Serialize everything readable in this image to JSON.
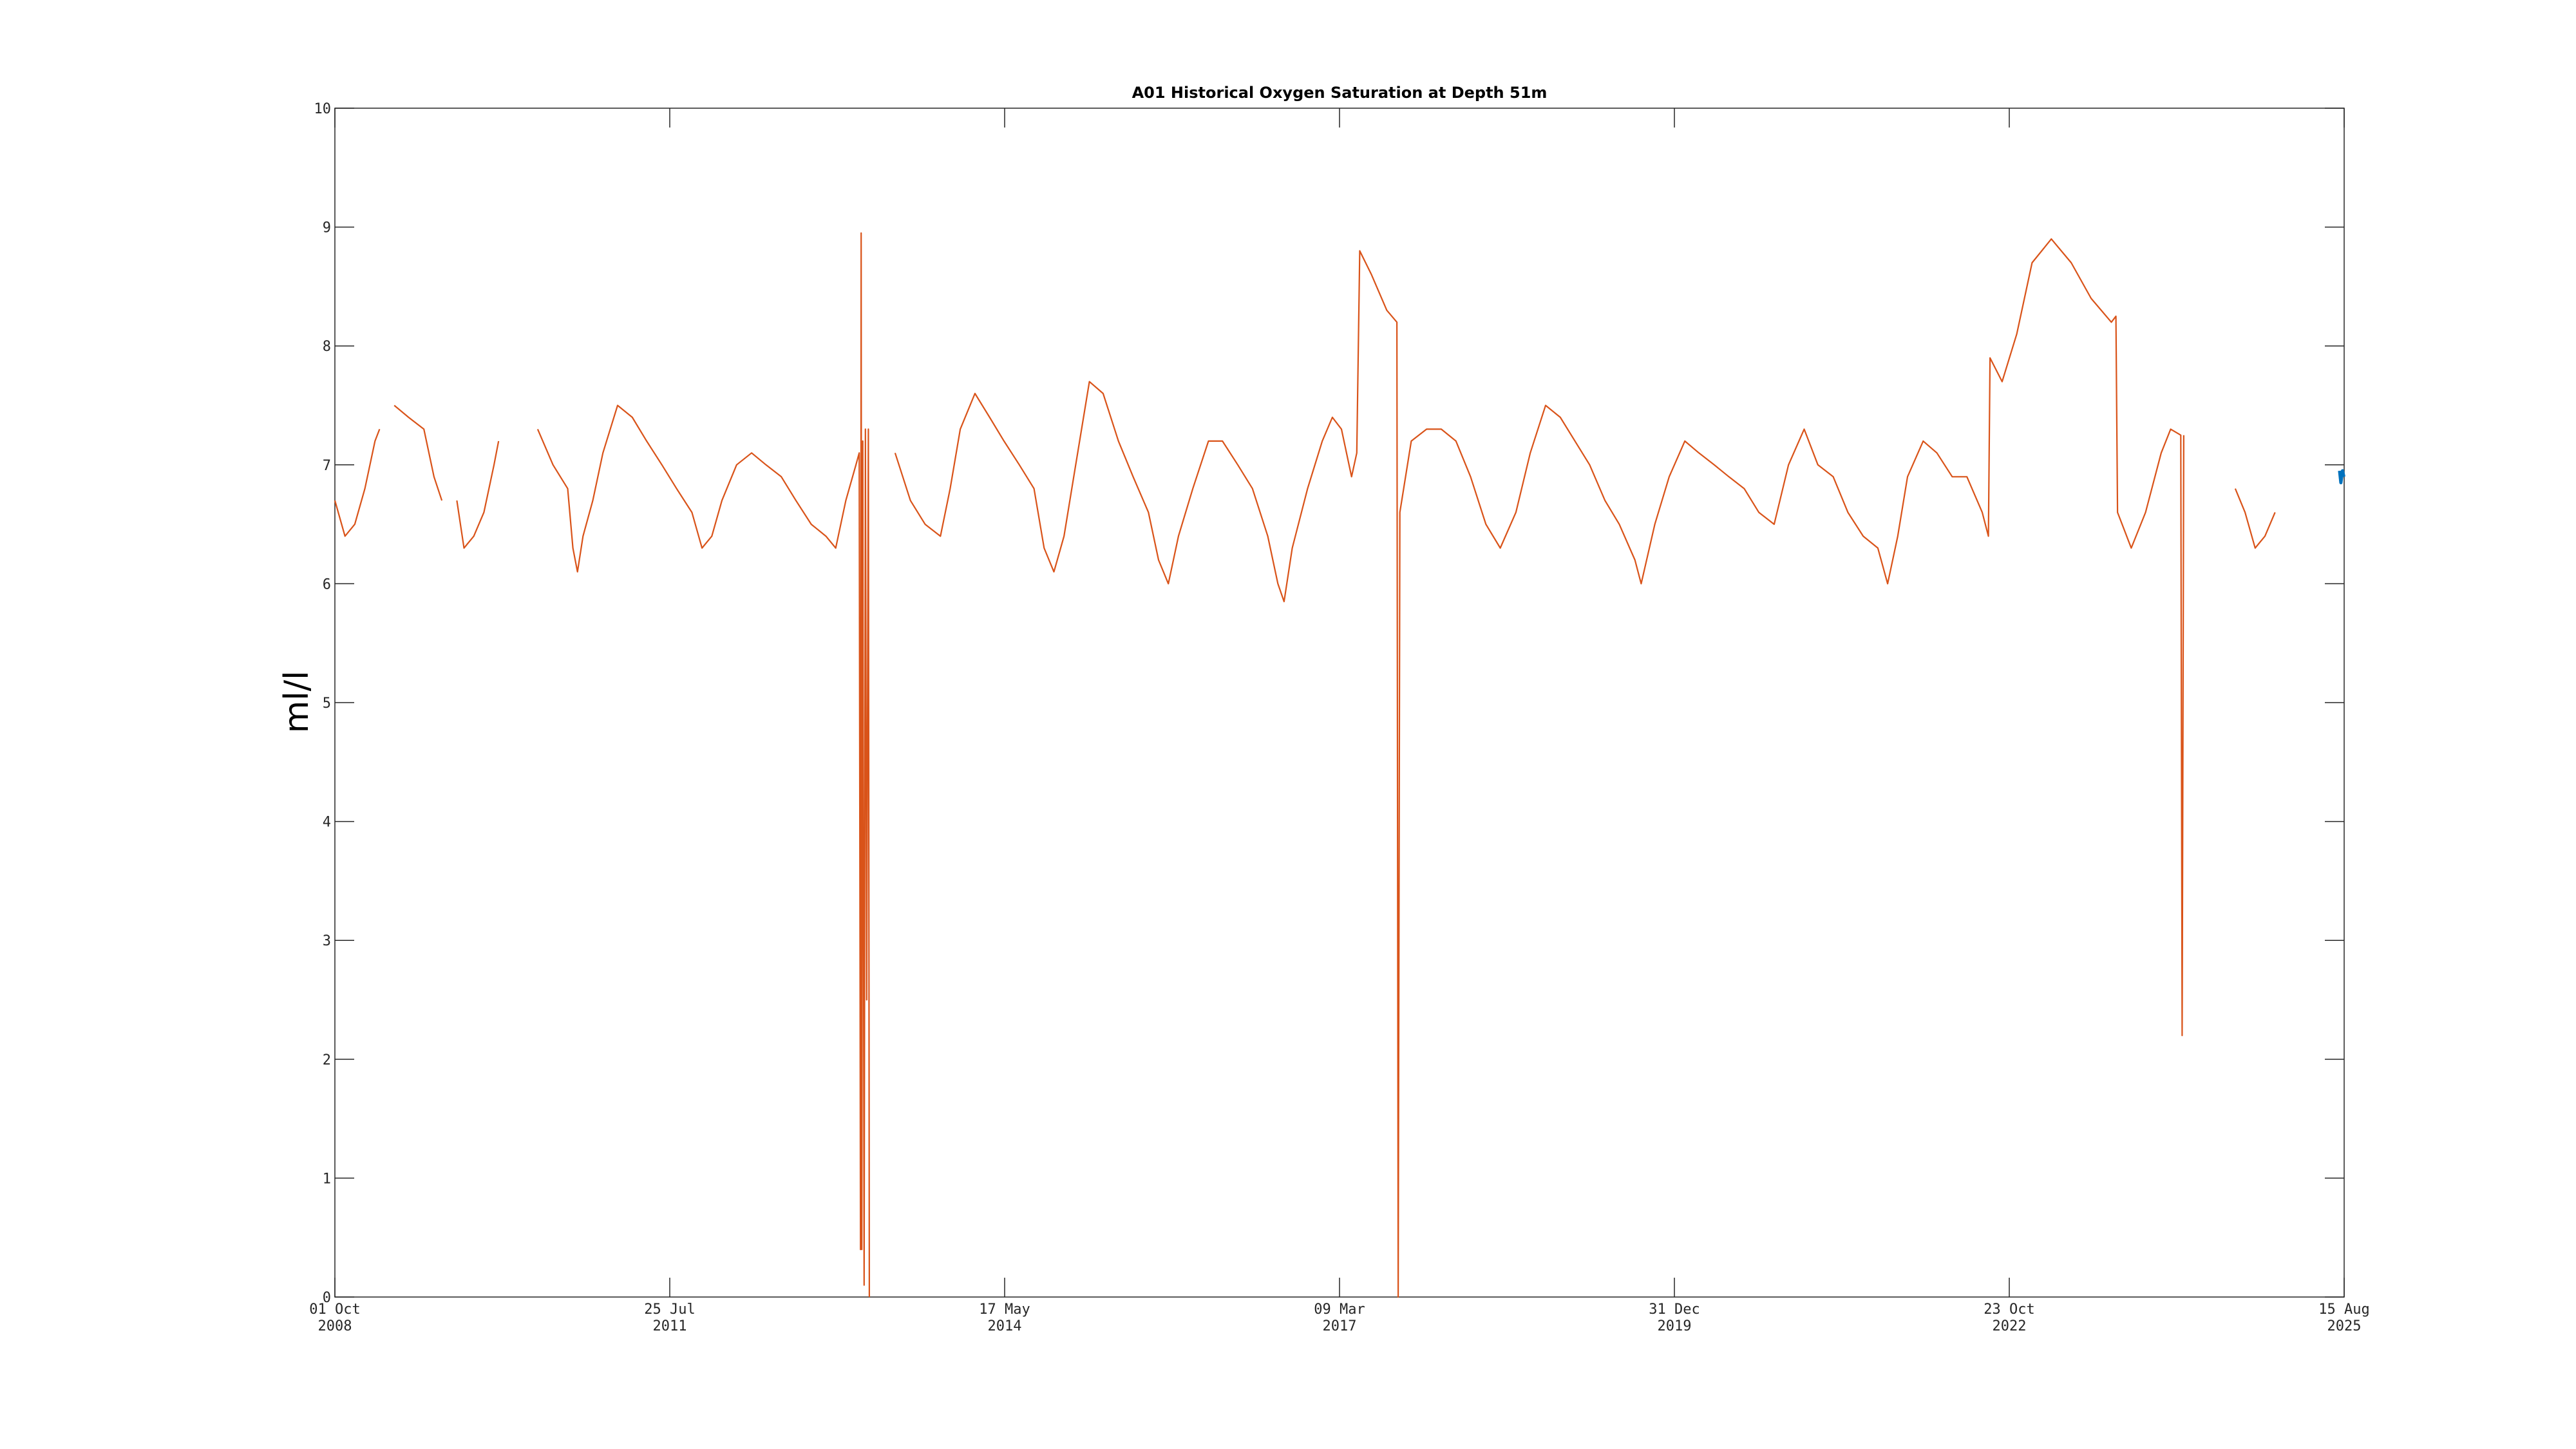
{
  "chart_data": {
    "type": "line",
    "title": "A01 Historical Oxygen Saturation at Depth 51m",
    "xlabel": "",
    "ylabel": "ml/l",
    "ylim": [
      0,
      10
    ],
    "yticks": [
      0,
      1,
      2,
      3,
      4,
      5,
      6,
      7,
      8,
      9,
      10
    ],
    "xlim": [
      "2008-10-01",
      "2025-08-15"
    ],
    "xticks": [
      {
        "date": "2008-10-01",
        "line1": "01 Oct",
        "line2": "2008"
      },
      {
        "date": "2011-07-25",
        "line1": "25 Jul",
        "line2": "2011"
      },
      {
        "date": "2014-05-17",
        "line1": "17 May",
        "line2": "2014"
      },
      {
        "date": "2017-03-09",
        "line1": "09 Mar",
        "line2": "2017"
      },
      {
        "date": "2019-12-31",
        "line1": "31 Dec",
        "line2": "2019"
      },
      {
        "date": "2022-10-23",
        "line1": "23 Oct",
        "line2": "2022"
      },
      {
        "date": "2025-08-15",
        "line1": "15 Aug",
        "line2": "2025"
      }
    ],
    "grid": false,
    "series": [
      {
        "color": "#d95319",
        "segments": [
          [
            [
              "2008-10-01",
              6.7
            ],
            [
              "2008-11-01",
              6.4
            ],
            [
              "2008-12-01",
              6.5
            ],
            [
              "2009-01-01",
              6.8
            ],
            [
              "2009-02-01",
              7.2
            ],
            [
              "2009-02-15",
              7.3
            ]
          ],
          [
            [
              "2009-04-01",
              7.5
            ],
            [
              "2009-05-15",
              7.4
            ],
            [
              "2009-07-01",
              7.3
            ],
            [
              "2009-08-01",
              6.9
            ],
            [
              "2009-08-25",
              6.7
            ]
          ],
          [
            [
              "2009-10-10",
              6.7
            ],
            [
              "2009-11-01",
              6.3
            ],
            [
              "2009-12-01",
              6.4
            ],
            [
              "2010-01-01",
              6.6
            ],
            [
              "2010-02-01",
              7.0
            ],
            [
              "2010-02-15",
              7.2
            ]
          ],
          [
            [
              "2010-06-15",
              7.3
            ],
            [
              "2010-08-01",
              7.0
            ],
            [
              "2010-09-15",
              6.8
            ],
            [
              "2010-10-01",
              6.3
            ],
            [
              "2010-10-15",
              6.1
            ],
            [
              "2010-11-01",
              6.4
            ],
            [
              "2010-12-01",
              6.7
            ],
            [
              "2011-01-01",
              7.1
            ],
            [
              "2011-02-15",
              7.5
            ],
            [
              "2011-04-01",
              7.4
            ],
            [
              "2011-05-15",
              7.2
            ],
            [
              "2011-07-01",
              7.0
            ],
            [
              "2011-08-15",
              6.8
            ],
            [
              "2011-10-01",
              6.6
            ],
            [
              "2011-11-01",
              6.3
            ],
            [
              "2011-12-01",
              6.4
            ],
            [
              "2012-01-01",
              6.7
            ],
            [
              "2012-02-15",
              7.0
            ],
            [
              "2012-04-01",
              7.1
            ],
            [
              "2012-05-15",
              7.0
            ],
            [
              "2012-07-01",
              6.9
            ],
            [
              "2012-08-15",
              6.7
            ],
            [
              "2012-10-01",
              6.5
            ],
            [
              "2012-11-15",
              6.4
            ],
            [
              "2012-12-15",
              6.3
            ],
            [
              "2013-01-15",
              6.7
            ],
            [
              "2013-02-15",
              7.0
            ],
            [
              "2013-02-25",
              7.1
            ],
            [
              "2013-03-01",
              0.4
            ],
            [
              "2013-03-03",
              8.95
            ],
            [
              "2013-03-05",
              0.4
            ],
            [
              "2013-03-08",
              7.2
            ],
            [
              "2013-03-12",
              0.1
            ],
            [
              "2013-03-16",
              7.3
            ],
            [
              "2013-03-20",
              2.5
            ],
            [
              "2013-03-25",
              7.3
            ],
            [
              "2013-03-28",
              0.0
            ]
          ],
          [
            [
              "2013-06-15",
              7.1
            ],
            [
              "2013-08-01",
              6.7
            ],
            [
              "2013-09-15",
              6.5
            ],
            [
              "2013-11-01",
              6.4
            ],
            [
              "2013-12-01",
              6.8
            ],
            [
              "2014-01-01",
              7.3
            ],
            [
              "2014-02-15",
              7.6
            ],
            [
              "2014-04-01",
              7.4
            ],
            [
              "2014-05-15",
              7.2
            ],
            [
              "2014-07-01",
              7.0
            ],
            [
              "2014-08-15",
              6.8
            ],
            [
              "2014-09-15",
              6.3
            ],
            [
              "2014-10-15",
              6.1
            ],
            [
              "2014-11-15",
              6.4
            ],
            [
              "2014-12-15",
              6.9
            ],
            [
              "2015-02-01",
              7.7
            ],
            [
              "2015-03-15",
              7.6
            ],
            [
              "2015-05-01",
              7.2
            ],
            [
              "2015-06-15",
              6.9
            ],
            [
              "2015-08-01",
              6.6
            ],
            [
              "2015-09-01",
              6.2
            ],
            [
              "2015-10-01",
              6.0
            ],
            [
              "2015-11-01",
              6.4
            ],
            [
              "2015-12-15",
              6.8
            ],
            [
              "2016-02-01",
              7.2
            ],
            [
              "2016-03-15",
              7.2
            ],
            [
              "2016-05-01",
              7.0
            ],
            [
              "2016-06-15",
              6.8
            ],
            [
              "2016-08-01",
              6.4
            ],
            [
              "2016-09-01",
              6.0
            ],
            [
              "2016-09-20",
              5.85
            ],
            [
              "2016-10-15",
              6.3
            ],
            [
              "2016-12-01",
              6.8
            ],
            [
              "2017-01-15",
              7.2
            ],
            [
              "2017-02-15",
              7.4
            ],
            [
              "2017-03-15",
              7.3
            ],
            [
              "2017-04-15",
              6.9
            ],
            [
              "2017-05-01",
              7.1
            ],
            [
              "2017-05-10",
              8.8
            ],
            [
              "2017-06-15",
              8.6
            ],
            [
              "2017-08-01",
              8.3
            ],
            [
              "2017-09-01",
              8.2
            ],
            [
              "2017-09-05",
              0.0
            ],
            [
              "2017-09-10",
              6.6
            ],
            [
              "2017-10-15",
              7.2
            ],
            [
              "2017-12-01",
              7.3
            ],
            [
              "2018-01-15",
              7.3
            ],
            [
              "2018-03-01",
              7.2
            ],
            [
              "2018-04-15",
              6.9
            ],
            [
              "2018-06-01",
              6.5
            ],
            [
              "2018-07-15",
              6.3
            ],
            [
              "2018-09-01",
              6.6
            ],
            [
              "2018-10-15",
              7.1
            ],
            [
              "2018-12-01",
              7.5
            ],
            [
              "2019-01-15",
              7.4
            ],
            [
              "2019-03-01",
              7.2
            ],
            [
              "2019-04-15",
              7.0
            ],
            [
              "2019-06-01",
              6.7
            ],
            [
              "2019-07-15",
              6.5
            ],
            [
              "2019-09-01",
              6.2
            ],
            [
              "2019-09-20",
              6.0
            ],
            [
              "2019-11-01",
              6.5
            ],
            [
              "2019-12-15",
              6.9
            ],
            [
              "2020-02-01",
              7.2
            ],
            [
              "2020-03-15",
              7.1
            ],
            [
              "2020-05-01",
              7.0
            ],
            [
              "2020-06-15",
              6.9
            ],
            [
              "2020-08-01",
              6.8
            ],
            [
              "2020-09-15",
              6.6
            ],
            [
              "2020-11-01",
              6.5
            ],
            [
              "2020-12-15",
              7.0
            ],
            [
              "2021-02-01",
              7.3
            ],
            [
              "2021-03-15",
              7.0
            ],
            [
              "2021-05-01",
              6.9
            ],
            [
              "2021-06-15",
              6.6
            ],
            [
              "2021-08-01",
              6.4
            ],
            [
              "2021-09-15",
              6.3
            ],
            [
              "2021-10-15",
              6.0
            ],
            [
              "2021-11-15",
              6.4
            ],
            [
              "2021-12-15",
              6.9
            ],
            [
              "2022-02-01",
              7.2
            ],
            [
              "2022-03-15",
              7.1
            ],
            [
              "2022-05-01",
              6.9
            ],
            [
              "2022-06-15",
              6.9
            ],
            [
              "2022-08-01",
              6.6
            ],
            [
              "2022-08-20",
              6.4
            ],
            [
              "2022-08-25",
              7.9
            ],
            [
              "2022-10-01",
              7.7
            ],
            [
              "2022-11-15",
              8.1
            ],
            [
              "2023-01-01",
              8.7
            ],
            [
              "2023-03-01",
              8.9
            ],
            [
              "2023-05-01",
              8.7
            ],
            [
              "2023-07-01",
              8.4
            ],
            [
              "2023-09-01",
              8.2
            ],
            [
              "2023-09-15",
              8.25
            ],
            [
              "2023-09-20",
              6.6
            ],
            [
              "2023-11-01",
              6.3
            ],
            [
              "2023-12-15",
              6.6
            ],
            [
              "2024-02-01",
              7.1
            ],
            [
              "2024-03-01",
              7.3
            ],
            [
              "2024-04-01",
              7.25
            ],
            [
              "2024-04-05",
              2.2
            ],
            [
              "2024-04-10",
              7.25
            ]
          ],
          [
            [
              "2024-09-15",
              6.8
            ],
            [
              "2024-10-15",
              6.6
            ],
            [
              "2024-11-15",
              6.3
            ],
            [
              "2024-12-15",
              6.4
            ],
            [
              "2025-01-15",
              6.6
            ]
          ]
        ]
      },
      {
        "color": "#0072bd",
        "segments": [
          [
            [
              "2025-08-01",
              6.95
            ],
            [
              "2025-08-05",
              6.85
            ],
            [
              "2025-08-10",
              6.95
            ],
            [
              "2025-08-14",
              6.9
            ]
          ]
        ]
      }
    ]
  }
}
